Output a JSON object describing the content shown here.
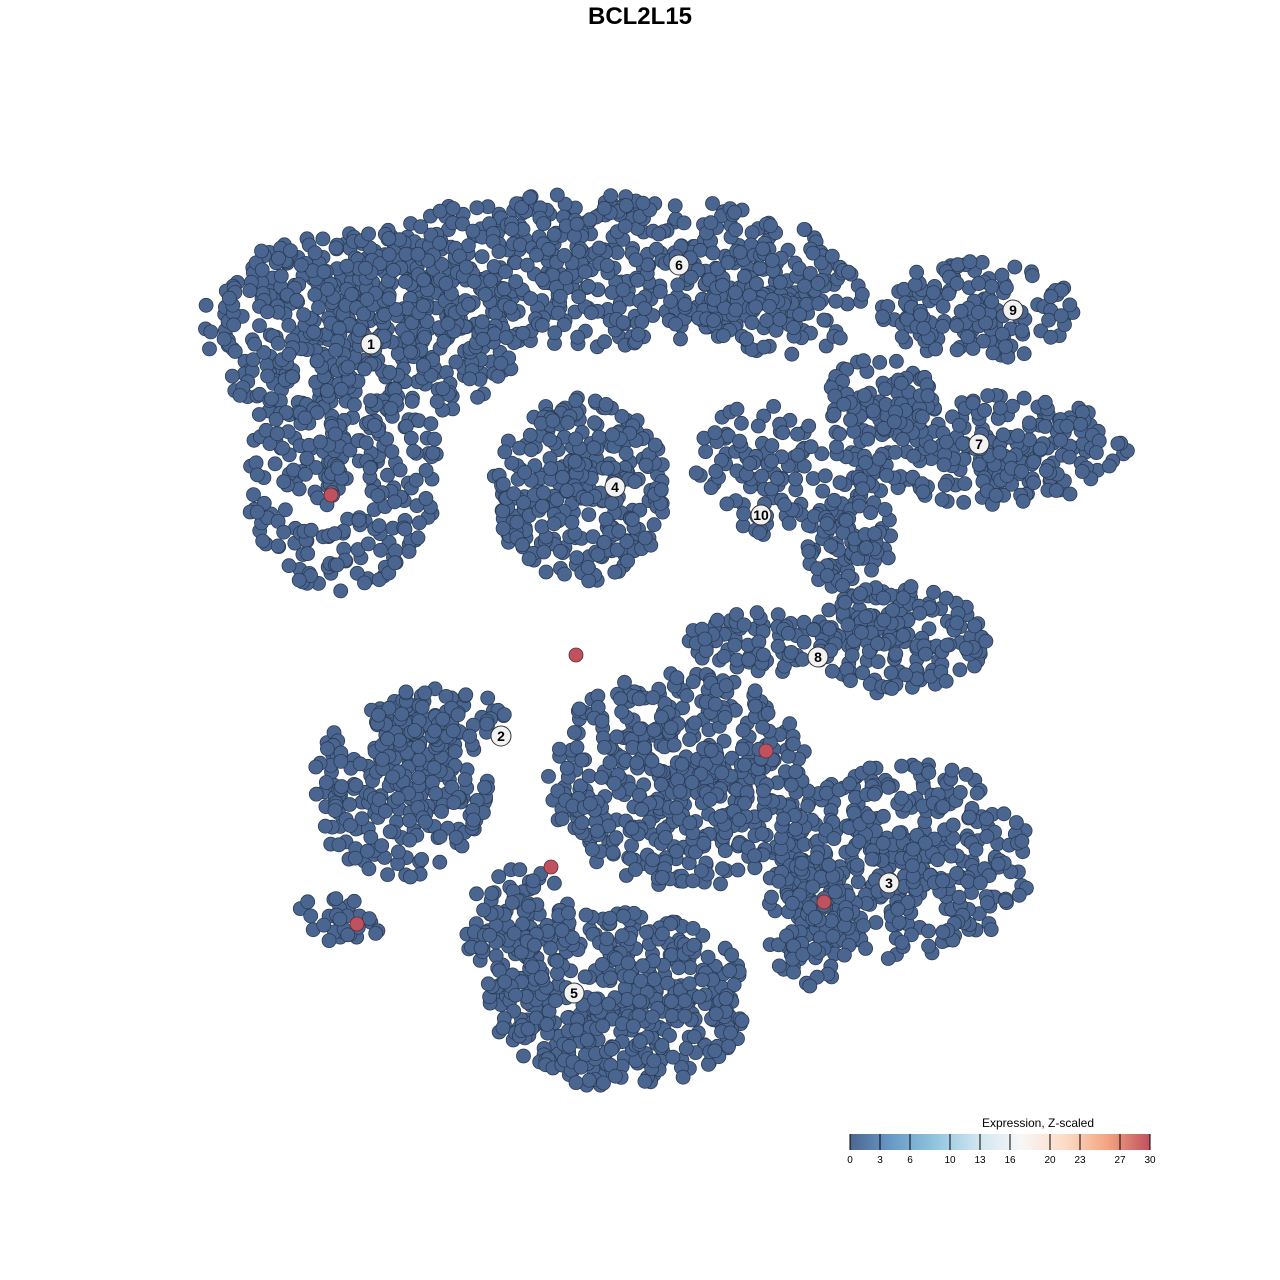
{
  "chart_data": {
    "type": "scatter",
    "title": "BCL2L15",
    "xlabel": "",
    "ylabel": "",
    "xlim": [
      -50,
      50
    ],
    "ylim": [
      -50,
      50
    ],
    "grid": false,
    "point_color_low": "#4a6690",
    "point_color_high": "#c0525f",
    "clusters": [
      {
        "label": "1",
        "label_pos": [
          -29.4,
          29.6
        ],
        "regions": [
          [
            -30.5,
            31,
            15,
            9,
            500
          ],
          [
            -32.5,
            17,
            9,
            11,
            250
          ]
        ]
      },
      {
        "label": "6",
        "label_pos": [
          1.4,
          37.5
        ],
        "regions": [
          [
            -7.5,
            37,
            23,
            7,
            550
          ],
          [
            11.5,
            34,
            8,
            5,
            120
          ]
        ]
      },
      {
        "label": "4",
        "label_pos": [
          -5.0,
          15.3
        ],
        "regions": [
          [
            -8.5,
            15,
            8,
            8.5,
            300
          ]
        ]
      },
      {
        "label": "9",
        "label_pos": [
          34.8,
          33.0
        ],
        "regions": [
          [
            31.5,
            33,
            9,
            4.5,
            150
          ]
        ]
      },
      {
        "label": "7",
        "label_pos": [
          31.4,
          19.6
        ],
        "regions": [
          [
            31.5,
            19,
            14,
            5,
            250
          ],
          [
            21.5,
            24,
            5,
            4,
            80
          ]
        ]
      },
      {
        "label": "10",
        "label_pos": [
          9.6,
          12.5
        ],
        "regions": [
          [
            9.5,
            17,
            6,
            6,
            100
          ]
        ]
      },
      {
        "label": "8",
        "label_pos": [
          15.3,
          -1.7
        ],
        "regions": [
          [
            23.5,
            0,
            8,
            5,
            180
          ],
          [
            18.5,
            10,
            4,
            6,
            100
          ],
          [
            9.5,
            0,
            7,
            3,
            80
          ]
        ]
      },
      {
        "label": "2",
        "label_pos": [
          -16.4,
          -9.6
        ],
        "regions": [
          [
            -26.5,
            -15,
            8,
            8,
            250
          ],
          [
            -22.5,
            -8,
            6,
            3,
            80
          ],
          [
            -32.5,
            -28,
            4,
            2.5,
            30
          ]
        ]
      },
      {
        "label": "3",
        "label_pos": [
          22.4,
          -24.3
        ],
        "regions": [
          [
            23.5,
            -22,
            12,
            9,
            400
          ],
          [
            14.5,
            -28,
            4,
            6,
            100
          ]
        ]
      },
      {
        "label": "5",
        "label_pos": [
          -9.1,
          -35.3
        ],
        "regions": [
          [
            -4.5,
            -36,
            12,
            8,
            450
          ],
          [
            -14.5,
            -29,
            5,
            6,
            120
          ],
          [
            1.5,
            -14,
            12,
            10,
            500
          ]
        ]
      }
    ],
    "high_expression_points": [
      [
        -33.4,
        14.5
      ],
      [
        -8.9,
        -1.5
      ],
      [
        10.1,
        -11.1
      ],
      [
        -11.4,
        -22.7
      ],
      [
        15.9,
        -26.2
      ],
      [
        -30.8,
        -28.4
      ]
    ],
    "high_expression_value": 30,
    "legend": {
      "title": "Expression, Z-scaled",
      "placement": "bottom-right",
      "ticks": [
        "0",
        "3",
        "6",
        "10",
        "13",
        "16",
        "20",
        "23",
        "27",
        "30"
      ],
      "tick_values": [
        0,
        3,
        6,
        10,
        13,
        16,
        20,
        23,
        27,
        30
      ],
      "range": [
        0,
        30
      ],
      "colors": [
        "#4a6690",
        "#6a9cc8",
        "#92c5de",
        "#d1e5f0",
        "#f7f7f7",
        "#fddbc7",
        "#f4a582",
        "#c0505f"
      ]
    }
  }
}
